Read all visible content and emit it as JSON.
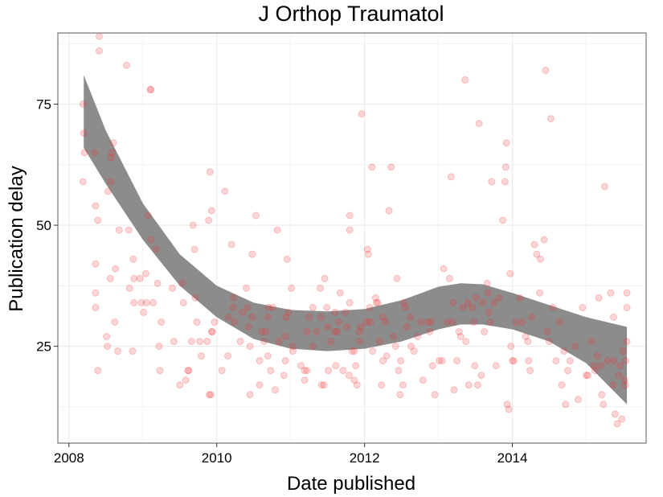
{
  "chart_data": {
    "type": "scatter",
    "title": "J Orthop Traumatol",
    "xlabel": "Date published",
    "ylabel": "Publication delay",
    "xlim": [
      2007.85,
      2015.81
    ],
    "ylim": [
      5,
      89.7
    ],
    "x_ticks": [
      {
        "value": 2008,
        "label": "2008"
      },
      {
        "value": 2010,
        "label": "2010"
      },
      {
        "value": 2012,
        "label": "2012"
      },
      {
        "value": 2014,
        "label": "2014"
      }
    ],
    "y_ticks": [
      {
        "value": 25,
        "label": "25"
      },
      {
        "value": 50,
        "label": "50"
      },
      {
        "value": 75,
        "label": "75"
      }
    ],
    "grid": true,
    "colors": {
      "points": "#ee3333",
      "band": "#8c8c8c",
      "grid": "#ebebeb",
      "border": "#7f7f7f"
    },
    "points": [
      [
        2008.19,
        75
      ],
      [
        2008.2,
        69
      ],
      [
        2008.21,
        65
      ],
      [
        2008.19,
        59
      ],
      [
        2008.35,
        65
      ],
      [
        2008.36,
        54
      ],
      [
        2008.36,
        42
      ],
      [
        2008.36,
        36
      ],
      [
        2008.36,
        33
      ],
      [
        2008.39,
        51
      ],
      [
        2008.41,
        89
      ],
      [
        2008.41,
        86
      ],
      [
        2008.39,
        20
      ],
      [
        2008.53,
        57
      ],
      [
        2008.56,
        59
      ],
      [
        2008.58,
        65
      ],
      [
        2008.6,
        67
      ],
      [
        2008.57,
        64
      ],
      [
        2008.56,
        39
      ],
      [
        2008.51,
        27
      ],
      [
        2008.52,
        25
      ],
      [
        2008.63,
        41
      ],
      [
        2008.62,
        30
      ],
      [
        2008.66,
        24
      ],
      [
        2008.68,
        49
      ],
      [
        2008.81,
        49
      ],
      [
        2008.78,
        83
      ],
      [
        2008.82,
        37
      ],
      [
        2008.87,
        43
      ],
      [
        2008.88,
        34
      ],
      [
        2008.88,
        39
      ],
      [
        2008.86,
        24
      ],
      [
        2008.96,
        39
      ],
      [
        2008.98,
        34
      ],
      [
        2009.01,
        32
      ],
      [
        2009.04,
        40
      ],
      [
        2009.05,
        34
      ],
      [
        2009.07,
        52
      ],
      [
        2009.1,
        78
      ],
      [
        2009.11,
        78
      ],
      [
        2009.11,
        47
      ],
      [
        2009.14,
        34
      ],
      [
        2009.18,
        45
      ],
      [
        2009.2,
        38
      ],
      [
        2009.22,
        25
      ],
      [
        2009.25,
        30
      ],
      [
        2009.23,
        20
      ],
      [
        2009.4,
        37
      ],
      [
        2009.42,
        26
      ],
      [
        2009.5,
        17
      ],
      [
        2009.53,
        38
      ],
      [
        2009.55,
        34
      ],
      [
        2009.58,
        18
      ],
      [
        2009.61,
        20
      ],
      [
        2009.62,
        20
      ],
      [
        2009.68,
        50
      ],
      [
        2009.66,
        26
      ],
      [
        2009.7,
        45
      ],
      [
        2009.71,
        35
      ],
      [
        2009.73,
        30
      ],
      [
        2009.77,
        26
      ],
      [
        2009.79,
        23
      ],
      [
        2009.87,
        26
      ],
      [
        2009.89,
        51
      ],
      [
        2009.91,
        61
      ],
      [
        2009.93,
        53
      ],
      [
        2009.93,
        28
      ],
      [
        2009.94,
        28
      ],
      [
        2009.97,
        30
      ],
      [
        2009.9,
        15
      ],
      [
        2009.92,
        15
      ],
      [
        2010.07,
        20
      ],
      [
        2010.11,
        57
      ],
      [
        2010.15,
        23
      ],
      [
        2010.16,
        31
      ],
      [
        2010.22,
        33
      ],
      [
        2010.24,
        30
      ],
      [
        2010.2,
        46
      ],
      [
        2010.23,
        35
      ],
      [
        2010.32,
        26
      ],
      [
        2010.35,
        32
      ],
      [
        2010.4,
        37
      ],
      [
        2010.42,
        33
      ],
      [
        2010.43,
        29
      ],
      [
        2010.45,
        25
      ],
      [
        2010.45,
        15
      ],
      [
        2010.48,
        31
      ],
      [
        2010.48,
        44
      ],
      [
        2010.53,
        52
      ],
      [
        2010.58,
        22
      ],
      [
        2010.58,
        17
      ],
      [
        2010.61,
        28
      ],
      [
        2010.64,
        26
      ],
      [
        2010.66,
        28
      ],
      [
        2010.69,
        31
      ],
      [
        2010.69,
        23
      ],
      [
        2010.7,
        33
      ],
      [
        2010.73,
        20
      ],
      [
        2010.76,
        33
      ],
      [
        2010.79,
        16
      ],
      [
        2010.82,
        49
      ],
      [
        2010.84,
        26
      ],
      [
        2010.91,
        19
      ],
      [
        2010.93,
        27
      ],
      [
        2010.94,
        31
      ],
      [
        2010.93,
        22
      ],
      [
        2010.95,
        43
      ],
      [
        2010.97,
        32
      ],
      [
        2011.01,
        37
      ],
      [
        2011.03,
        25
      ],
      [
        2011.03,
        24
      ],
      [
        2011.14,
        21
      ],
      [
        2011.19,
        18
      ],
      [
        2011.19,
        20
      ],
      [
        2011.22,
        20
      ],
      [
        2011.22,
        28
      ],
      [
        2011.25,
        31
      ],
      [
        2011.3,
        33
      ],
      [
        2011.3,
        25
      ],
      [
        2011.35,
        28
      ],
      [
        2011.4,
        37
      ],
      [
        2011.41,
        31
      ],
      [
        2011.42,
        17
      ],
      [
        2011.45,
        17
      ],
      [
        2011.46,
        39
      ],
      [
        2011.49,
        33
      ],
      [
        2011.5,
        29
      ],
      [
        2011.51,
        20
      ],
      [
        2011.54,
        26
      ],
      [
        2011.6,
        32
      ],
      [
        2011.6,
        28
      ],
      [
        2011.61,
        21
      ],
      [
        2011.63,
        28
      ],
      [
        2011.65,
        30
      ],
      [
        2011.67,
        36
      ],
      [
        2011.71,
        20
      ],
      [
        2011.74,
        32
      ],
      [
        2011.76,
        29
      ],
      [
        2011.79,
        19
      ],
      [
        2011.8,
        52
      ],
      [
        2011.8,
        49
      ],
      [
        2011.8,
        34
      ],
      [
        2011.83,
        24
      ],
      [
        2011.86,
        24
      ],
      [
        2011.86,
        18
      ],
      [
        2011.88,
        21
      ],
      [
        2011.9,
        17
      ],
      [
        2011.93,
        28
      ],
      [
        2011.95,
        29
      ],
      [
        2011.93,
        26
      ],
      [
        2011.96,
        73
      ],
      [
        2012.03,
        30
      ],
      [
        2012.04,
        45
      ],
      [
        2012.05,
        44
      ],
      [
        2012.07,
        33
      ],
      [
        2012.08,
        30
      ],
      [
        2012.1,
        62
      ],
      [
        2012.11,
        24
      ],
      [
        2012.15,
        35
      ],
      [
        2012.16,
        34
      ],
      [
        2012.18,
        34
      ],
      [
        2012.2,
        26
      ],
      [
        2012.23,
        17
      ],
      [
        2012.25,
        22
      ],
      [
        2012.25,
        31
      ],
      [
        2012.28,
        30
      ],
      [
        2012.3,
        23
      ],
      [
        2012.33,
        53
      ],
      [
        2012.36,
        62
      ],
      [
        2012.39,
        27
      ],
      [
        2012.42,
        25
      ],
      [
        2012.44,
        39
      ],
      [
        2012.46,
        20
      ],
      [
        2012.48,
        15
      ],
      [
        2012.49,
        22
      ],
      [
        2012.52,
        17
      ],
      [
        2012.53,
        34
      ],
      [
        2012.55,
        33
      ],
      [
        2012.57,
        29
      ],
      [
        2012.62,
        31
      ],
      [
        2012.63,
        25
      ],
      [
        2012.67,
        24
      ],
      [
        2012.72,
        27
      ],
      [
        2012.76,
        30
      ],
      [
        2012.79,
        18
      ],
      [
        2012.86,
        30
      ],
      [
        2012.88,
        28
      ],
      [
        2012.9,
        30
      ],
      [
        2012.92,
        21
      ],
      [
        2012.95,
        15
      ],
      [
        2013.01,
        22
      ],
      [
        2013.05,
        22
      ],
      [
        2013.07,
        41
      ],
      [
        2013.12,
        30
      ],
      [
        2013.15,
        39
      ],
      [
        2013.17,
        60
      ],
      [
        2013.19,
        30
      ],
      [
        2013.2,
        34
      ],
      [
        2013.21,
        16
      ],
      [
        2013.25,
        22
      ],
      [
        2013.28,
        28
      ],
      [
        2013.3,
        27
      ],
      [
        2013.33,
        33
      ],
      [
        2013.36,
        80
      ],
      [
        2013.37,
        26
      ],
      [
        2013.4,
        34
      ],
      [
        2013.41,
        17
      ],
      [
        2013.46,
        33
      ],
      [
        2013.48,
        30
      ],
      [
        2013.49,
        21
      ],
      [
        2013.51,
        35
      ],
      [
        2013.53,
        17
      ],
      [
        2013.55,
        71
      ],
      [
        2013.58,
        19
      ],
      [
        2013.6,
        34
      ],
      [
        2013.62,
        28
      ],
      [
        2013.66,
        38
      ],
      [
        2013.67,
        36
      ],
      [
        2013.68,
        32
      ],
      [
        2013.7,
        30
      ],
      [
        2013.72,
        59
      ],
      [
        2013.75,
        34
      ],
      [
        2013.78,
        21
      ],
      [
        2013.82,
        35
      ],
      [
        2013.87,
        51
      ],
      [
        2013.9,
        59
      ],
      [
        2013.91,
        62
      ],
      [
        2013.92,
        67
      ],
      [
        2013.93,
        13
      ],
      [
        2013.95,
        12
      ],
      [
        2013.97,
        40
      ],
      [
        2013.98,
        25
      ],
      [
        2014.0,
        22
      ],
      [
        2014.02,
        22
      ],
      [
        2014.05,
        30
      ],
      [
        2014.1,
        35
      ],
      [
        2014.13,
        30
      ],
      [
        2014.18,
        27
      ],
      [
        2014.21,
        26
      ],
      [
        2014.22,
        22
      ],
      [
        2014.24,
        20
      ],
      [
        2014.26,
        31
      ],
      [
        2014.3,
        46
      ],
      [
        2014.33,
        44
      ],
      [
        2014.37,
        36
      ],
      [
        2014.38,
        43
      ],
      [
        2014.43,
        47
      ],
      [
        2014.45,
        82
      ],
      [
        2014.47,
        28
      ],
      [
        2014.5,
        26
      ],
      [
        2014.52,
        72
      ],
      [
        2014.55,
        33
      ],
      [
        2014.59,
        22
      ],
      [
        2014.64,
        30
      ],
      [
        2014.67,
        17
      ],
      [
        2014.7,
        24
      ],
      [
        2014.72,
        13
      ],
      [
        2014.75,
        20
      ],
      [
        2014.78,
        22
      ],
      [
        2014.85,
        25
      ],
      [
        2014.89,
        14
      ],
      [
        2014.95,
        33
      ],
      [
        2015.0,
        19
      ],
      [
        2015.02,
        19
      ],
      [
        2015.07,
        26
      ],
      [
        2015.1,
        21
      ],
      [
        2015.12,
        20
      ],
      [
        2015.15,
        23
      ],
      [
        2015.17,
        35
      ],
      [
        2015.2,
        21
      ],
      [
        2015.21,
        15
      ],
      [
        2015.23,
        13
      ],
      [
        2015.25,
        58
      ],
      [
        2015.29,
        22
      ],
      [
        2015.33,
        36
      ],
      [
        2015.37,
        31
      ],
      [
        2015.36,
        17
      ],
      [
        2015.39,
        11
      ],
      [
        2015.42,
        9
      ],
      [
        2015.44,
        19
      ],
      [
        2015.46,
        21
      ],
      [
        2015.48,
        10
      ],
      [
        2015.5,
        24
      ],
      [
        2015.52,
        18
      ],
      [
        2015.53,
        22
      ],
      [
        2015.55,
        36
      ],
      [
        2015.55,
        33
      ],
      [
        2015.55,
        26
      ],
      [
        2015.53,
        17
      ],
      [
        2015.37,
        22
      ]
    ],
    "smooth_band": {
      "x": [
        2008.2,
        2008.5,
        2009.0,
        2009.5,
        2010.0,
        2010.5,
        2011.0,
        2011.5,
        2012.0,
        2012.5,
        2013.0,
        2013.3,
        2013.6,
        2014.0,
        2014.5,
        2015.0,
        2015.55
      ],
      "upper": [
        81,
        69.5,
        54.5,
        44,
        37.5,
        34,
        32.5,
        32.2,
        32.7,
        34.5,
        37.3,
        38,
        37.8,
        36,
        33.5,
        31,
        29
      ],
      "lower": [
        66,
        58.5,
        47,
        37.5,
        31,
        26.5,
        24.5,
        24,
        24.5,
        26,
        28.5,
        29.5,
        29.5,
        28.5,
        26,
        21.5,
        13
      ]
    }
  }
}
